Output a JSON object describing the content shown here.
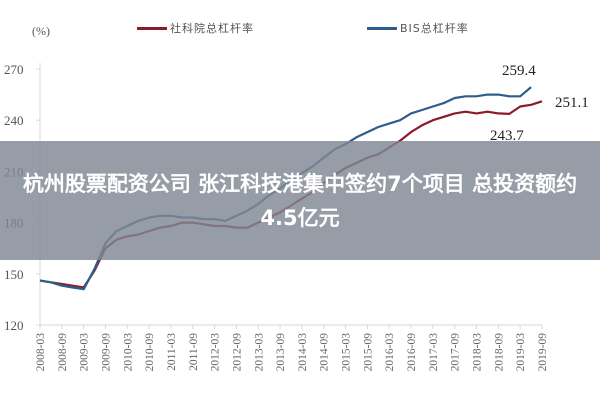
{
  "chart_data": {
    "type": "line",
    "title": "",
    "xlabel": "",
    "ylabel": "(%)",
    "ylim": [
      120,
      270
    ],
    "yticks": [
      120,
      150,
      180,
      210,
      240,
      270
    ],
    "grid": false,
    "legend_position": "top",
    "categories": [
      "2008-03",
      "2008-09",
      "2009-03",
      "2009-09",
      "2010-03",
      "2010-09",
      "2011-03",
      "2011-09",
      "2012-03",
      "2012-09",
      "2013-03",
      "2013-09",
      "2014-03",
      "2014-09",
      "2015-03",
      "2015-09",
      "2016-03",
      "2016-09",
      "2017-03",
      "2017-09",
      "2018-03",
      "2018-09",
      "2019-03",
      "2019-09"
    ],
    "series": [
      {
        "name": "社科院总杠杆率",
        "color": "#8b1a2b",
        "x": [
          0,
          0.5,
          1,
          1.5,
          2,
          2.5,
          3,
          3.5,
          4,
          4.5,
          5,
          5.5,
          6,
          6.5,
          7,
          7.5,
          8,
          8.5,
          9,
          9.5,
          10,
          10.5,
          11,
          11.5,
          12,
          12.5,
          13,
          13.5,
          14,
          14.5,
          15,
          15.5,
          16,
          16.5,
          17,
          17.5,
          18,
          18.5,
          19,
          19.5,
          20,
          20.5,
          21,
          21.5,
          22,
          22.5,
          23
        ],
        "values": [
          146,
          145,
          144,
          143,
          142,
          152,
          165,
          170,
          172,
          173,
          175,
          177,
          178,
          180,
          180,
          179,
          178,
          178,
          177,
          177,
          180,
          183,
          186,
          190,
          194,
          198,
          203,
          208,
          212,
          215,
          218,
          220,
          224,
          228,
          233,
          237,
          240,
          242,
          244,
          245,
          244,
          245,
          244,
          243.7,
          248,
          249,
          251.1
        ]
      },
      {
        "name": "BIS总杠杆率",
        "color": "#2e5d8c",
        "x": [
          0,
          0.5,
          1,
          1.5,
          2,
          2.5,
          3,
          3.5,
          4,
          4.5,
          5,
          5.5,
          6,
          6.5,
          7,
          7.5,
          8,
          8.5,
          9,
          9.5,
          10,
          10.5,
          11,
          11.5,
          12,
          12.5,
          13,
          13.5,
          14,
          14.5,
          15,
          15.5,
          16,
          16.5,
          17,
          17.5,
          18,
          18.5,
          19,
          19.5,
          20,
          20.5,
          21,
          21.5,
          22,
          22.5
        ],
        "values": [
          146,
          145,
          143,
          142,
          141,
          153,
          168,
          175,
          178,
          181,
          183,
          184,
          184,
          183,
          183,
          182,
          182,
          181,
          184,
          187,
          191,
          196,
          200,
          205,
          209,
          213,
          218,
          223,
          226,
          230,
          233,
          236,
          238,
          240,
          244,
          246,
          248,
          250,
          253,
          254,
          254,
          255,
          255,
          254,
          254,
          259.4
        ]
      }
    ],
    "annotations": [
      {
        "text": "259.4",
        "series": "BIS总杠杆率"
      },
      {
        "text": "251.1",
        "series": "社科院总杠杆率"
      },
      {
        "text": "243.7",
        "series": "社科院总杠杆率"
      }
    ]
  },
  "legend": {
    "items": [
      {
        "label": "社科院总杠杆率",
        "color": "#8b1a2b"
      },
      {
        "label": "BIS总杠杆率",
        "color": "#2e5d8c"
      }
    ]
  },
  "unit_label": "(%)",
  "banner": {
    "text": "杭州股票配资公司 张江科技港集中签约7个项目 总投资额约4.5亿元"
  }
}
